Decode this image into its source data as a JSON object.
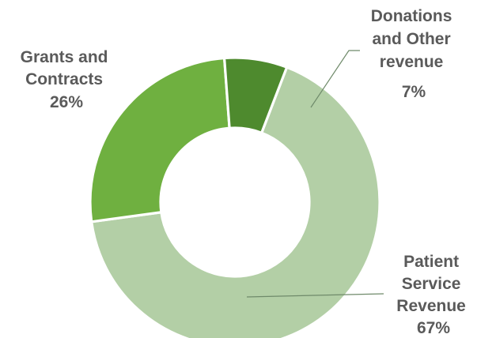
{
  "chart_data": {
    "type": "pie",
    "donut": true,
    "title": "",
    "slices": [
      {
        "label_lines": [
          "Patient",
          "Service",
          "Revenue",
          "67%"
        ],
        "name": "Patient Service Revenue",
        "value": 67,
        "color": "#b3cfa6"
      },
      {
        "label_lines": [
          "Grants and",
          "Contracts",
          "26%"
        ],
        "name": "Grants and Contracts",
        "value": 26,
        "color": "#6fb040"
      },
      {
        "label_lines": [
          "Donations",
          "and Other",
          "revenue",
          "7%"
        ],
        "name": "Donations and Other revenue",
        "value": 7,
        "color": "#4e8a2e"
      }
    ],
    "legend": "none",
    "label_color": "#5a5a5a",
    "leader_color": "#6f8a6a"
  }
}
